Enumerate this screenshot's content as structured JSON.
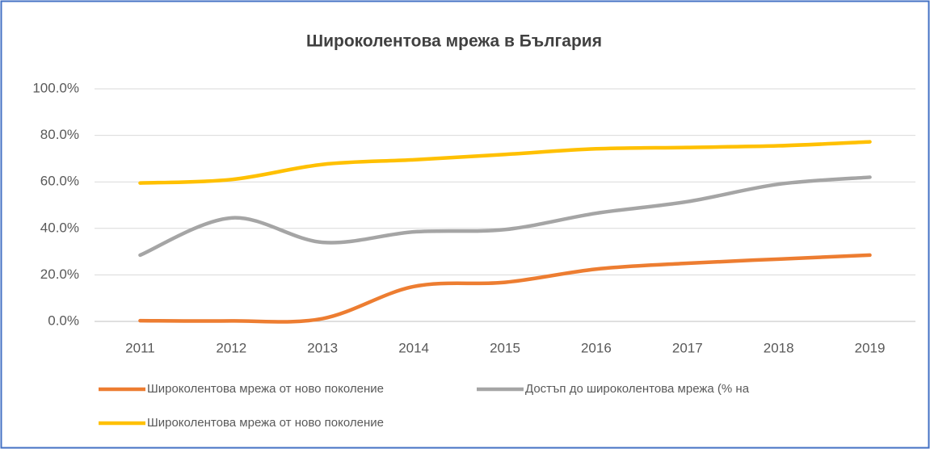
{
  "chart_data": {
    "type": "line",
    "title": "Широколентова мрежа в България",
    "categories": [
      "2011",
      "2012",
      "2013",
      "2014",
      "2015",
      "2016",
      "2017",
      "2018",
      "2019"
    ],
    "series": [
      {
        "name": "Широколентова мрежа от ново поколение",
        "color": "#ED7D31",
        "values": [
          0.3,
          0.2,
          1.2,
          15,
          16.8,
          22.5,
          25,
          26.8,
          28.5
        ]
      },
      {
        "name": "Достъп до широколентова мрежа (% на",
        "color": "#A5A5A5",
        "values": [
          28.5,
          44.5,
          34,
          38.5,
          39.5,
          46.5,
          51.5,
          59,
          62
        ]
      },
      {
        "name": "Широколентова мрежа от ново поколение",
        "color": "#FFC000",
        "values": [
          59.5,
          61,
          67.5,
          69.5,
          71.8,
          74.2,
          74.8,
          75.5,
          77.2
        ]
      }
    ],
    "ylim": [
      0,
      100
    ],
    "yticks": [
      {
        "value": 0,
        "label": "0.0%"
      },
      {
        "value": 20,
        "label": "20.0%"
      },
      {
        "value": 40,
        "label": "40.0%"
      },
      {
        "value": 60,
        "label": "60.0%"
      },
      {
        "value": 80,
        "label": "80.0%"
      },
      {
        "value": 100,
        "label": "100.0%"
      }
    ],
    "grid": true,
    "smooth": true,
    "legend": "bottom"
  }
}
